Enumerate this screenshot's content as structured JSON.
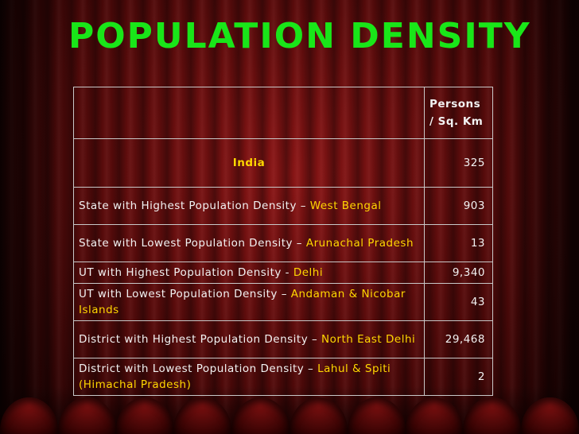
{
  "slide": {
    "title": "POPULATION DENSITY"
  },
  "table": {
    "header": {
      "unit": "Persons / Sq. Km"
    },
    "india": {
      "label": "India",
      "value": "325"
    },
    "rows": [
      {
        "prefix": "State with Highest Population Density – ",
        "highlight": "West Bengal",
        "value": "903"
      },
      {
        "prefix": "State with Lowest Population Density – ",
        "highlight": "Arunachal Pradesh",
        "value": "13"
      },
      {
        "prefix": "UT with Highest Population Density - ",
        "highlight": "Delhi",
        "value": "9,340"
      },
      {
        "prefix": "UT with Lowest Population Density – ",
        "highlight": "Andaman & Nicobar Islands",
        "value": "43"
      },
      {
        "prefix": "District with Highest Population Density – ",
        "highlight": "North East Delhi",
        "value": "29,468"
      },
      {
        "prefix": "District with Lowest Population Density – ",
        "highlight": "Lahul & Spiti (Himachal Pradesh)",
        "value": "2"
      }
    ]
  }
}
